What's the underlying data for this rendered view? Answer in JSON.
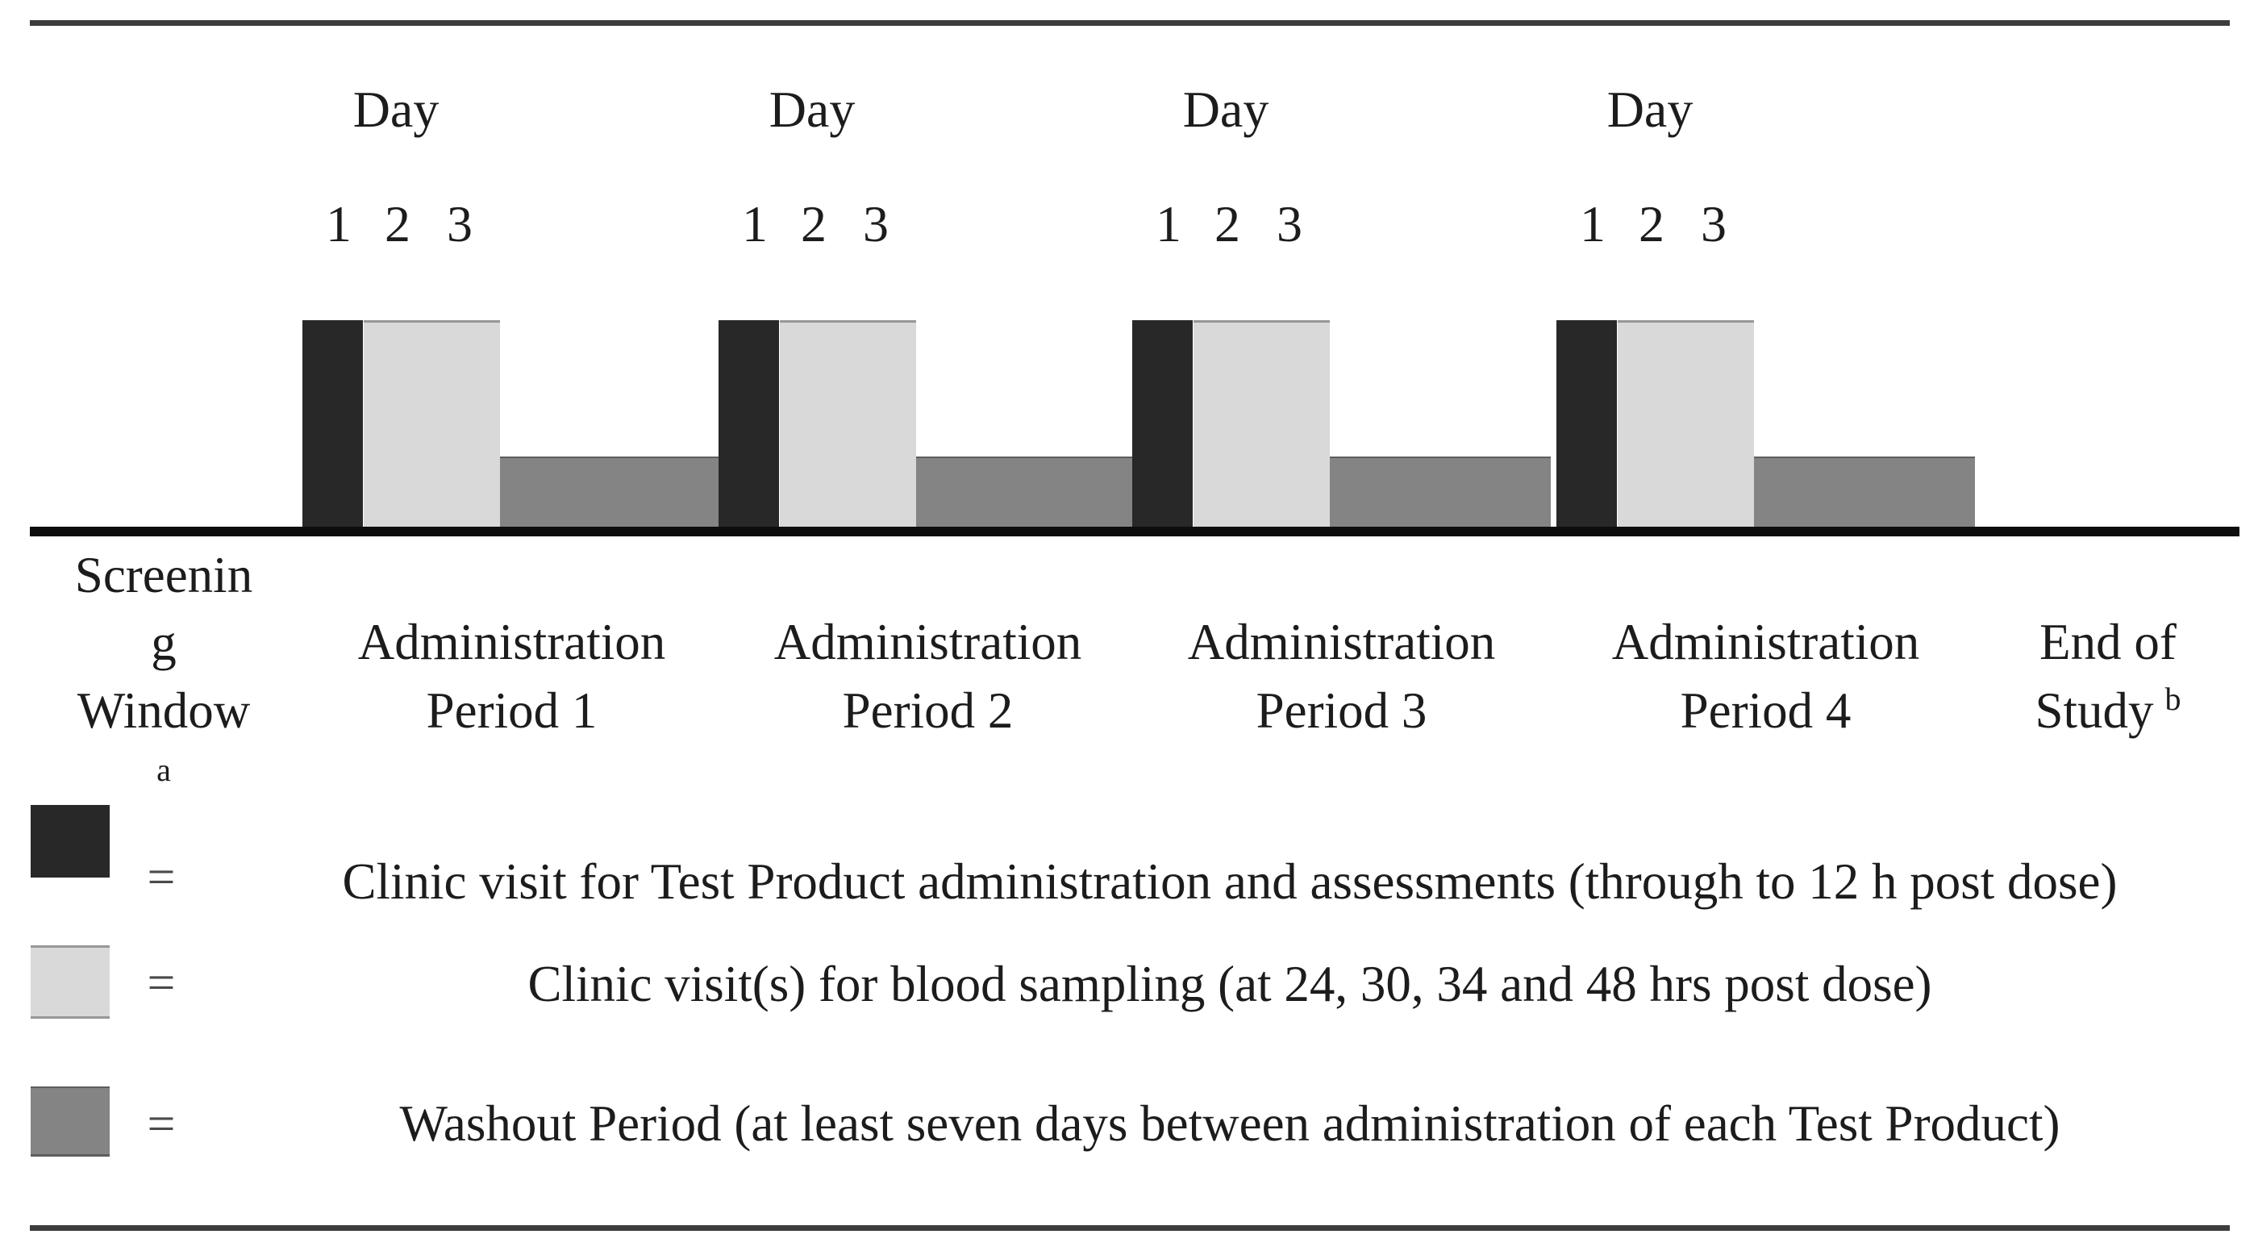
{
  "timeline": {
    "day_word": "Day",
    "day_numbers": [
      "1",
      "2",
      "3"
    ],
    "periods": [
      {
        "label_line1": "Administration",
        "label_line2": "Period 1"
      },
      {
        "label_line1": "Administration",
        "label_line2": "Period 2"
      },
      {
        "label_line1": "Administration",
        "label_line2": "Period 3"
      },
      {
        "label_line1": "Administration",
        "label_line2": "Period 4"
      }
    ],
    "screening_label": {
      "line1": "Screenin",
      "line2": "g",
      "line3": "Window",
      "footnote_marker": "a"
    },
    "end_of_study_label": {
      "line1": "End of",
      "line2": "Study",
      "footnote_marker": "b"
    }
  },
  "legend": {
    "equals_sign": "=",
    "items": [
      {
        "swatch": "clinic-visit-dark-swatch",
        "text": "Clinic visit for Test Product administration and assessments (through to 12 h post dose)"
      },
      {
        "swatch": "blood-sampling-light-swatch",
        "text": "Clinic visit(s) for blood sampling (at 24, 30, 34 and 48 hrs post dose)"
      },
      {
        "swatch": "washout-gray-swatch",
        "text": "Washout Period (at least seven days between administration of each Test Product)"
      }
    ]
  },
  "colors": {
    "dark_bar": "#282828",
    "light_bar": "#d9d9d9",
    "light_bar_edge": "#979797",
    "washout_bar": "#848484",
    "washout_edge": "#5e5e5e",
    "baseline": "#0d0d0d",
    "rule": "#3d3d3d",
    "text": "#1c1c1c",
    "equals": "#4a4a4a"
  }
}
